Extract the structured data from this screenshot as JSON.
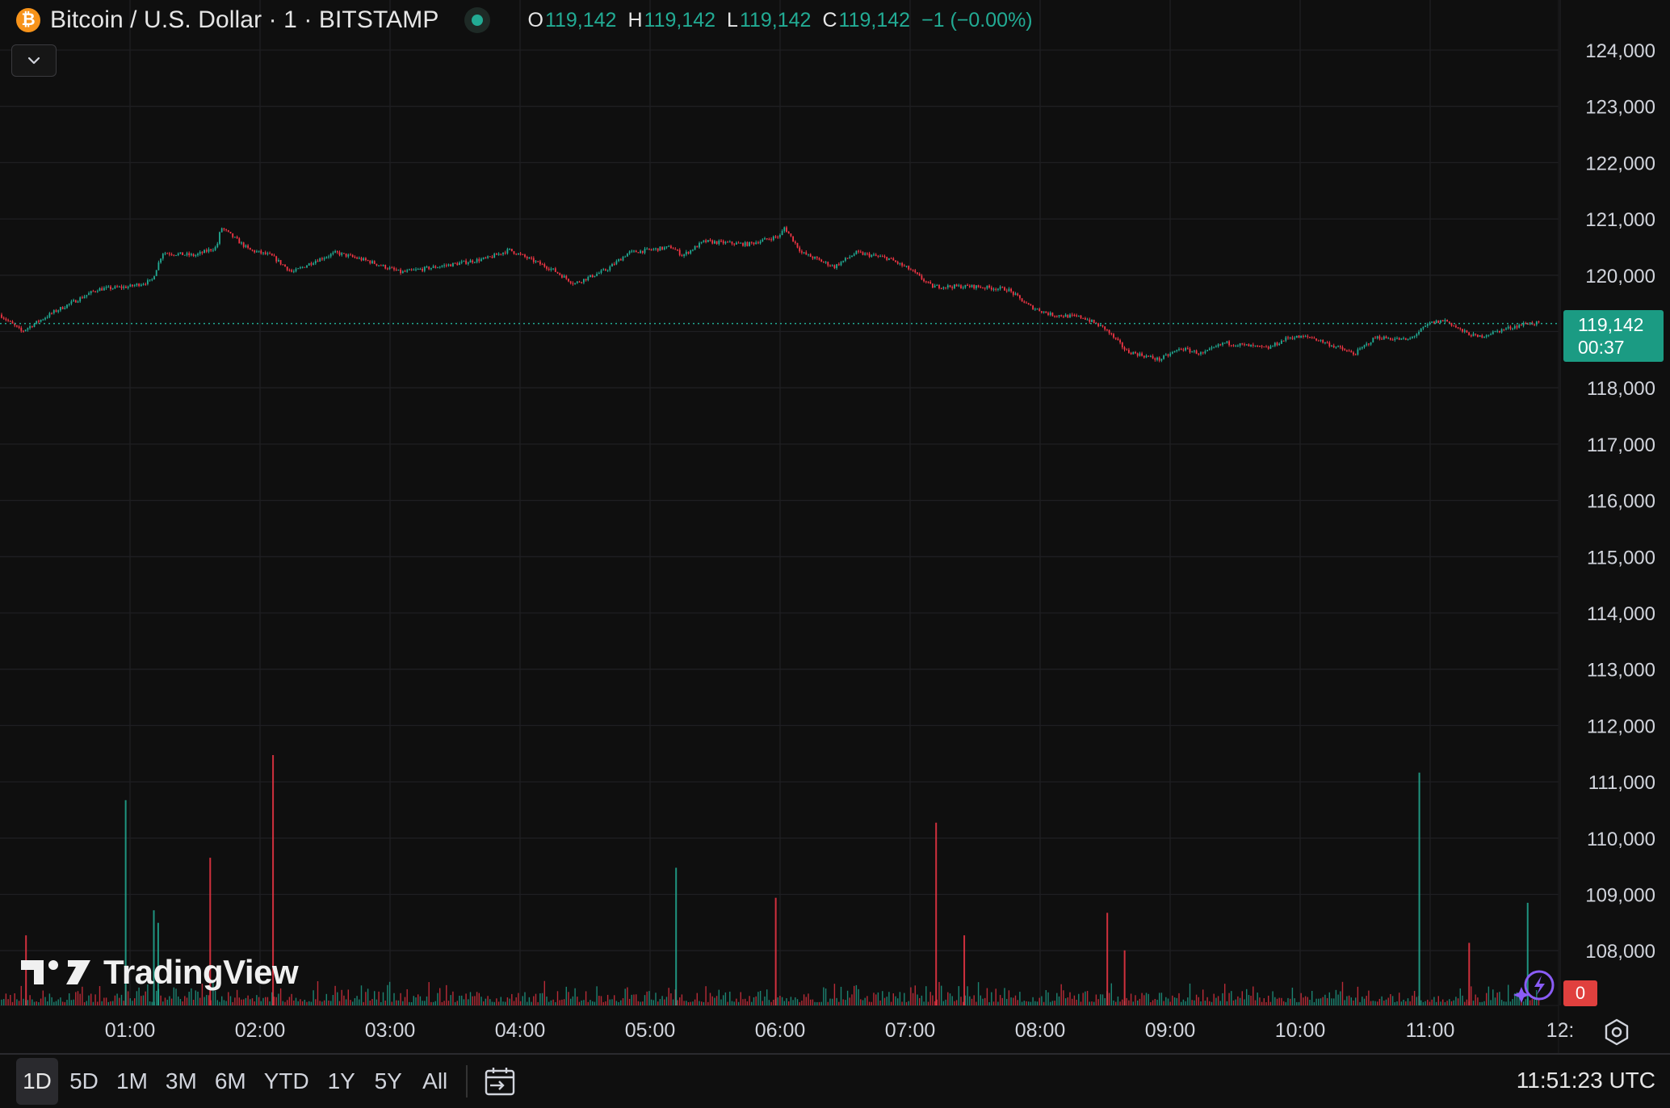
{
  "legend": {
    "symbol_title": "Bitcoin / U.S. Dollar · 1 · BITSTAMP",
    "icon": "bitcoin-icon",
    "open_key": "O",
    "open": "119,142",
    "high_key": "H",
    "high": "119,142",
    "low_key": "L",
    "low": "119,142",
    "close_key": "C",
    "close": "119,142",
    "change": "−1 (−0.00%)"
  },
  "price_badge": {
    "price": "119,142",
    "countdown": "00:37"
  },
  "alerts_badge": "0",
  "watermark": "TradingView",
  "time_range_tabs": [
    {
      "label": "1D",
      "active": true
    },
    {
      "label": "5D"
    },
    {
      "label": "1M"
    },
    {
      "label": "3M"
    },
    {
      "label": "6M"
    },
    {
      "label": "YTD"
    },
    {
      "label": "1Y"
    },
    {
      "label": "5Y"
    },
    {
      "label": "All"
    }
  ],
  "clock": "11:51:23 UTC",
  "colors": {
    "up": "#22ab94",
    "down": "#f23645",
    "background": "#0f0f0f",
    "grid": "#1f1f22",
    "accent": "#f7931a"
  },
  "chart_data": {
    "type": "line",
    "x_ticks": [
      "01:00",
      "02:00",
      "03:00",
      "04:00",
      "05:00",
      "06:00",
      "07:00",
      "08:00",
      "09:00",
      "10:00",
      "11:00",
      "12:"
    ],
    "y_ticks": [
      108000,
      109000,
      110000,
      111000,
      112000,
      113000,
      114000,
      115000,
      116000,
      117000,
      118000,
      119000,
      120000,
      121000,
      122000,
      123000,
      124000
    ],
    "ylim": [
      107050,
      124900
    ],
    "current_price": 119142,
    "series": [
      {
        "values_by_hour": [
          {
            "t": "00:00",
            "price": 119300
          },
          {
            "t": "00:10",
            "price": 119000
          },
          {
            "t": "00:25",
            "price": 119350
          },
          {
            "t": "00:45",
            "price": 119750
          },
          {
            "t": "01:00",
            "price": 119800
          },
          {
            "t": "01:10",
            "price": 119900
          },
          {
            "t": "01:15",
            "price": 120400
          },
          {
            "t": "01:30",
            "price": 120350
          },
          {
            "t": "01:40",
            "price": 120500
          },
          {
            "t": "01:42",
            "price": 120850
          },
          {
            "t": "01:55",
            "price": 120450
          },
          {
            "t": "02:05",
            "price": 120350
          },
          {
            "t": "02:15",
            "price": 120050
          },
          {
            "t": "02:25",
            "price": 120250
          },
          {
            "t": "02:35",
            "price": 120400
          },
          {
            "t": "02:50",
            "price": 120250
          },
          {
            "t": "03:05",
            "price": 120050
          },
          {
            "t": "03:30",
            "price": 120200
          },
          {
            "t": "03:45",
            "price": 120300
          },
          {
            "t": "03:55",
            "price": 120450
          },
          {
            "t": "04:15",
            "price": 120100
          },
          {
            "t": "04:25",
            "price": 119850
          },
          {
            "t": "04:40",
            "price": 120100
          },
          {
            "t": "04:50",
            "price": 120400
          },
          {
            "t": "05:10",
            "price": 120500
          },
          {
            "t": "05:15",
            "price": 120350
          },
          {
            "t": "05:25",
            "price": 120600
          },
          {
            "t": "05:45",
            "price": 120550
          },
          {
            "t": "06:00",
            "price": 120700
          },
          {
            "t": "06:02",
            "price": 120850
          },
          {
            "t": "06:10",
            "price": 120400
          },
          {
            "t": "06:25",
            "price": 120150
          },
          {
            "t": "06:35",
            "price": 120400
          },
          {
            "t": "06:50",
            "price": 120300
          },
          {
            "t": "07:00",
            "price": 120100
          },
          {
            "t": "07:10",
            "price": 119800
          },
          {
            "t": "07:30",
            "price": 119800
          },
          {
            "t": "07:45",
            "price": 119750
          },
          {
            "t": "07:55",
            "price": 119450
          },
          {
            "t": "08:05",
            "price": 119300
          },
          {
            "t": "08:20",
            "price": 119250
          },
          {
            "t": "08:30",
            "price": 119050
          },
          {
            "t": "08:40",
            "price": 118650
          },
          {
            "t": "08:55",
            "price": 118500
          },
          {
            "t": "09:05",
            "price": 118700
          },
          {
            "t": "09:15",
            "price": 118600
          },
          {
            "t": "09:25",
            "price": 118800
          },
          {
            "t": "09:45",
            "price": 118700
          },
          {
            "t": "09:55",
            "price": 118900
          },
          {
            "t": "10:05",
            "price": 118900
          },
          {
            "t": "10:15",
            "price": 118750
          },
          {
            "t": "10:25",
            "price": 118600
          },
          {
            "t": "10:35",
            "price": 118900
          },
          {
            "t": "10:50",
            "price": 118850
          },
          {
            "t": "11:00",
            "price": 119150
          },
          {
            "t": "11:07",
            "price": 119200
          },
          {
            "t": "11:15",
            "price": 119000
          },
          {
            "t": "11:22",
            "price": 118900
          },
          {
            "t": "11:35",
            "price": 119050
          },
          {
            "t": "11:45",
            "price": 119150
          },
          {
            "t": "11:51",
            "price": 119142
          }
        ]
      }
    ],
    "volume_spikes_by_time": [
      {
        "t": "00:12",
        "rel": 0.28,
        "dir": "down"
      },
      {
        "t": "00:58",
        "rel": 0.82,
        "dir": "up"
      },
      {
        "t": "01:11",
        "rel": 0.38,
        "dir": "up"
      },
      {
        "t": "01:13",
        "rel": 0.33,
        "dir": "up"
      },
      {
        "t": "01:37",
        "rel": 0.59,
        "dir": "down"
      },
      {
        "t": "02:06",
        "rel": 1.0,
        "dir": "down"
      },
      {
        "t": "05:12",
        "rel": 0.55,
        "dir": "up"
      },
      {
        "t": "05:58",
        "rel": 0.43,
        "dir": "down"
      },
      {
        "t": "07:12",
        "rel": 0.73,
        "dir": "down"
      },
      {
        "t": "07:25",
        "rel": 0.28,
        "dir": "down"
      },
      {
        "t": "08:31",
        "rel": 0.37,
        "dir": "down"
      },
      {
        "t": "08:39",
        "rel": 0.22,
        "dir": "down"
      },
      {
        "t": "10:55",
        "rel": 0.93,
        "dir": "up"
      },
      {
        "t": "11:18",
        "rel": 0.25,
        "dir": "down"
      },
      {
        "t": "11:45",
        "rel": 0.41,
        "dir": "up"
      }
    ]
  }
}
